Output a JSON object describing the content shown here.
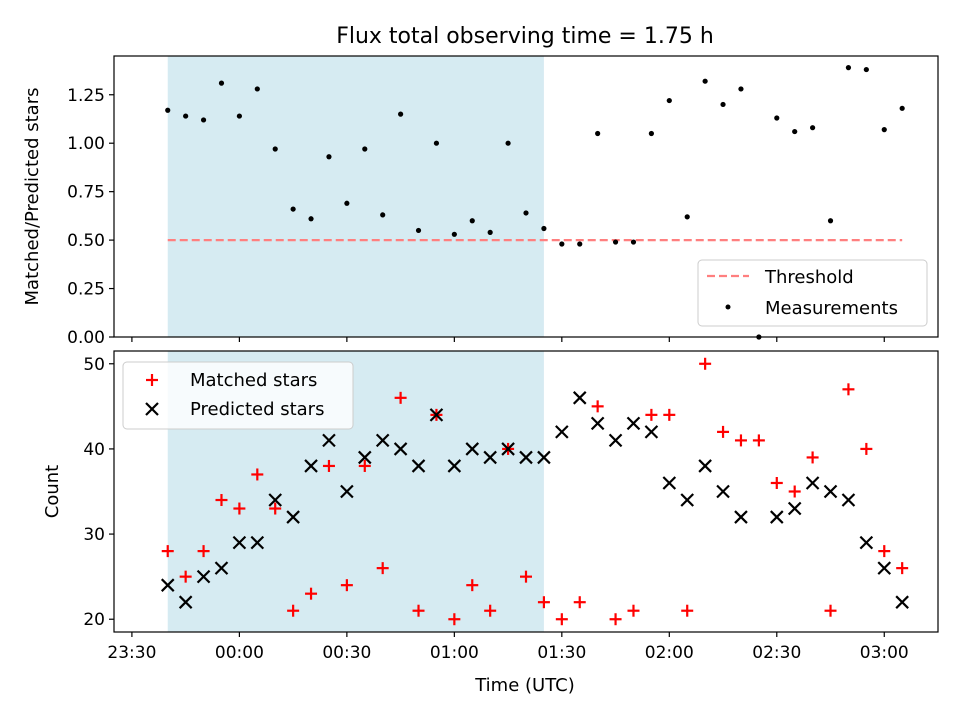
{
  "title": "Flux total observing time = 1.75 h",
  "xlabel": "Time (UTC)",
  "x_ticks": [
    "23:30",
    "00:00",
    "00:30",
    "01:00",
    "01:30",
    "02:00",
    "02:30",
    "03:00"
  ],
  "colors": {
    "threshold": "#ff7f7f",
    "measurement": "#000000",
    "matched": "#ff0000",
    "predicted": "#000000",
    "span": "#add8e6"
  },
  "chart_data": [
    {
      "type": "scatter",
      "panel": "top",
      "ylabel": "Matched/Predicted stars",
      "xlim": [
        "23:25",
        "03:15"
      ],
      "ylim": [
        0,
        1.45
      ],
      "y_ticks": [
        "0.00",
        "0.25",
        "0.50",
        "0.75",
        "1.00",
        "1.25"
      ],
      "highlight_span": [
        "23:40",
        "01:25"
      ],
      "legend_position": "lower right",
      "legend": [
        "Threshold",
        "Measurements"
      ],
      "threshold": {
        "name": "Threshold",
        "y": 0.5,
        "x_range": [
          "23:40",
          "03:05"
        ],
        "style": "dashed"
      },
      "series": [
        {
          "name": "Measurements",
          "x": [
            "23:40",
            "23:45",
            "23:50",
            "23:55",
            "00:00",
            "00:05",
            "00:10",
            "00:15",
            "00:20",
            "00:25",
            "00:30",
            "00:35",
            "00:40",
            "00:45",
            "00:50",
            "00:55",
            "01:00",
            "01:05",
            "01:10",
            "01:15",
            "01:20",
            "01:25",
            "01:30",
            "01:35",
            "01:40",
            "01:45",
            "01:50",
            "01:55",
            "02:00",
            "02:05",
            "02:10",
            "02:15",
            "02:20",
            "02:25",
            "02:30",
            "02:35",
            "02:40",
            "02:45",
            "02:50",
            "02:55",
            "03:00",
            "03:05"
          ],
          "y": [
            1.17,
            1.14,
            1.12,
            1.31,
            1.14,
            1.28,
            0.97,
            0.66,
            0.61,
            0.93,
            0.69,
            0.97,
            0.63,
            1.15,
            0.55,
            1.0,
            0.53,
            0.6,
            0.54,
            1.0,
            0.64,
            0.56,
            0.48,
            0.48,
            1.05,
            0.49,
            0.49,
            1.05,
            1.22,
            0.62,
            1.32,
            1.2,
            1.28,
            0.0,
            1.13,
            1.06,
            1.08,
            0.6,
            1.39,
            1.38,
            1.07,
            1.18
          ]
        }
      ]
    },
    {
      "type": "scatter",
      "panel": "bottom",
      "ylabel": "Count",
      "xlim": [
        "23:25",
        "03:15"
      ],
      "ylim": [
        18.5,
        51.5
      ],
      "y_ticks": [
        "20",
        "30",
        "40",
        "50"
      ],
      "highlight_span": [
        "23:40",
        "01:25"
      ],
      "legend_position": "upper left",
      "legend": [
        "Matched stars",
        "Predicted stars"
      ],
      "series": [
        {
          "name": "Matched stars",
          "marker": "+",
          "x": [
            "23:40",
            "23:45",
            "23:50",
            "23:55",
            "00:00",
            "00:05",
            "00:10",
            "00:15",
            "00:20",
            "00:25",
            "00:30",
            "00:35",
            "00:40",
            "00:45",
            "00:50",
            "00:55",
            "01:00",
            "01:05",
            "01:10",
            "01:15",
            "01:20",
            "01:25",
            "01:30",
            "01:35",
            "01:40",
            "01:45",
            "01:50",
            "01:55",
            "02:00",
            "02:05",
            "02:10",
            "02:15",
            "02:20",
            "02:25",
            "02:30",
            "02:35",
            "02:40",
            "02:45",
            "02:50",
            "02:55",
            "03:00",
            "03:05"
          ],
          "y": [
            28,
            25,
            28,
            34,
            33,
            37,
            33,
            21,
            23,
            38,
            24,
            38,
            26,
            46,
            21,
            44,
            20,
            24,
            21,
            40,
            25,
            22,
            20,
            22,
            45,
            20,
            21,
            44,
            44,
            21,
            50,
            42,
            41,
            41,
            36,
            35,
            39,
            21,
            47,
            40,
            28,
            26
          ]
        },
        {
          "name": "Predicted stars",
          "marker": "x",
          "x": [
            "23:40",
            "23:45",
            "23:50",
            "23:55",
            "00:00",
            "00:05",
            "00:10",
            "00:15",
            "00:20",
            "00:25",
            "00:30",
            "00:35",
            "00:40",
            "00:45",
            "00:50",
            "00:55",
            "01:00",
            "01:05",
            "01:10",
            "01:15",
            "01:20",
            "01:25",
            "01:30",
            "01:35",
            "01:40",
            "01:45",
            "01:50",
            "01:55",
            "02:00",
            "02:05",
            "02:10",
            "02:15",
            "02:20",
            "02:30",
            "02:35",
            "02:40",
            "02:45",
            "02:50",
            "02:55",
            "03:00",
            "03:05"
          ],
          "y": [
            24,
            22,
            25,
            26,
            29,
            29,
            34,
            32,
            38,
            41,
            35,
            39,
            41,
            40,
            38,
            44,
            38,
            40,
            39,
            40,
            39,
            39,
            42,
            46,
            43,
            41,
            43,
            42,
            36,
            34,
            38,
            35,
            32,
            32,
            33,
            36,
            35,
            34,
            29,
            26,
            22
          ]
        }
      ]
    }
  ]
}
